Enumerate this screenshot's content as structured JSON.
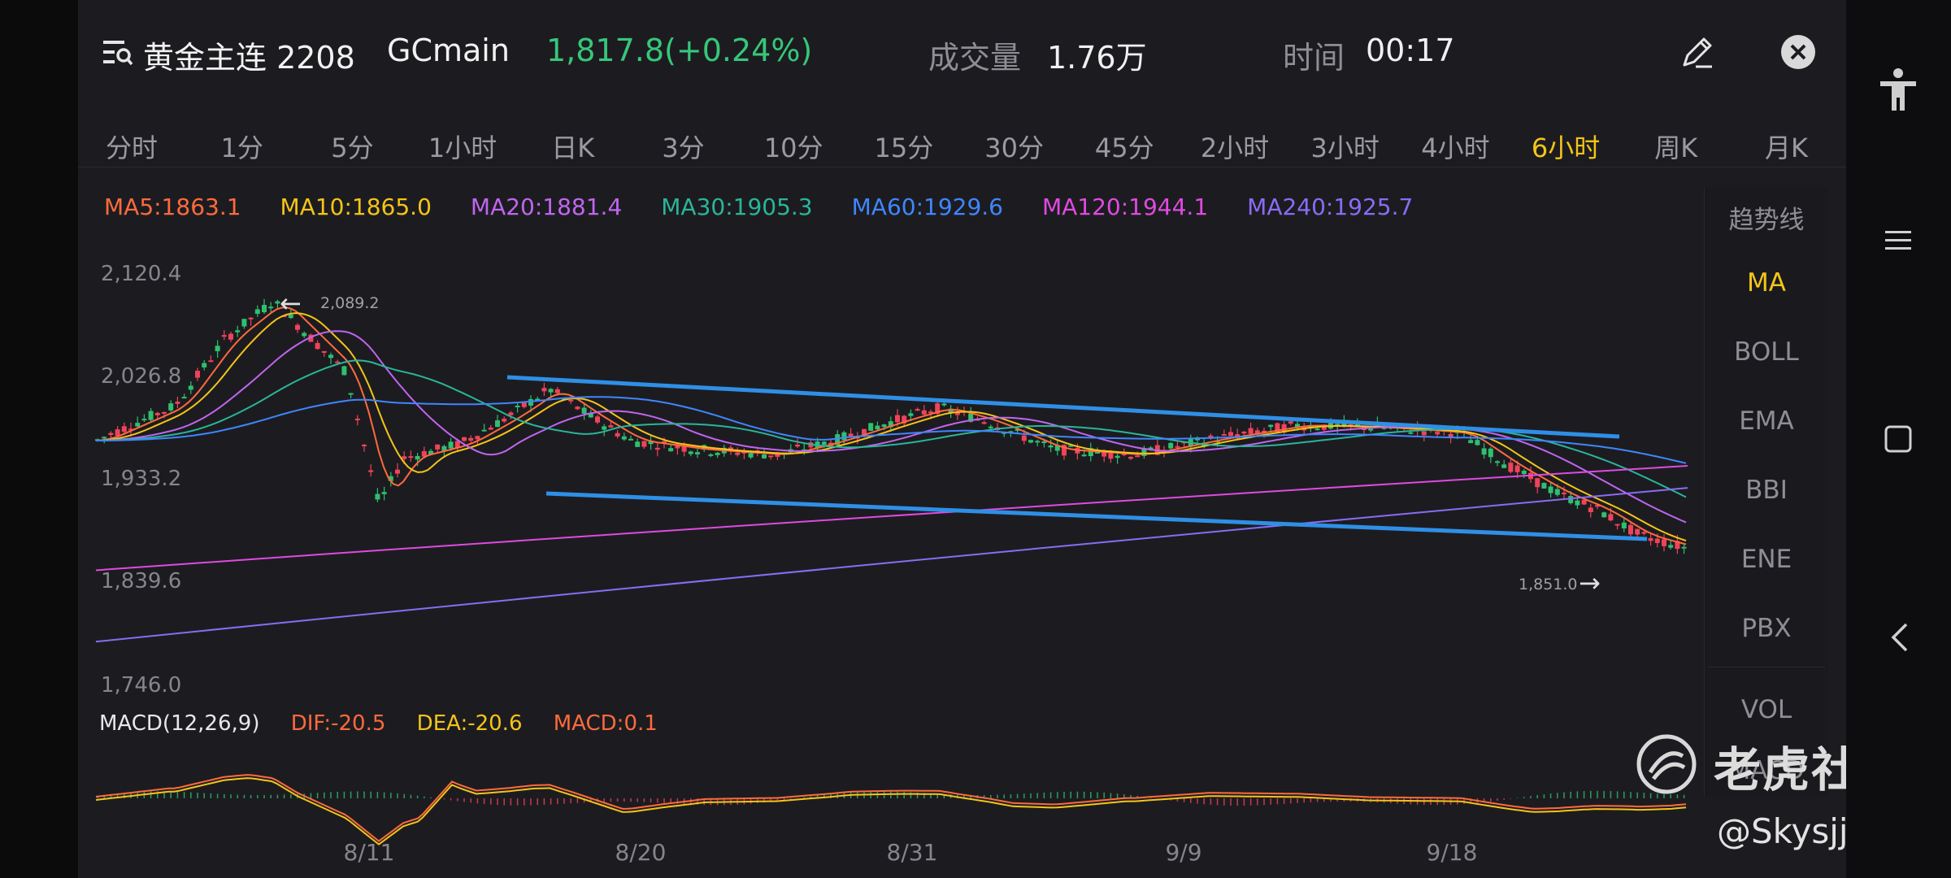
{
  "header": {
    "title": "黄金主连 2208",
    "code": "GCmain",
    "price": "1,817.8(+0.24%)",
    "volume_label": "成交量",
    "volume_value": "1.76万",
    "time_label": "时间",
    "time_value": "00:17",
    "edit_icon": "pencil-icon",
    "close_icon": "close-icon"
  },
  "periods": [
    "分时",
    "1分",
    "5分",
    "1小时",
    "日K",
    "3分",
    "10分",
    "15分",
    "30分",
    "45分",
    "2小时",
    "3小时",
    "4小时",
    "6小时",
    "周K",
    "月K"
  ],
  "active_period": "6小时",
  "ma_legend": [
    {
      "label": "MA5:1863.1",
      "color": "#ff6a3d"
    },
    {
      "label": "MA10:1865.0",
      "color": "#f5c418"
    },
    {
      "label": "MA20:1881.4",
      "color": "#c065f0"
    },
    {
      "label": "MA30:1905.3",
      "color": "#2ab59a"
    },
    {
      "label": "MA60:1929.6",
      "color": "#3f86ff"
    },
    {
      "label": "MA120:1944.1",
      "color": "#e04ae0"
    },
    {
      "label": "MA240:1925.7",
      "color": "#8a6cf5"
    }
  ],
  "price_axis": [
    "2,120.4",
    "2,026.8",
    "1,933.2",
    "1,839.6",
    "1,746.0"
  ],
  "annotations": {
    "high": "2,089.2",
    "low": "1,851.0"
  },
  "macd": {
    "label": "MACD(12,26,9)",
    "dif": "DIF:-20.5",
    "dea": "DEA:-20.6",
    "macd": "MACD:0.1"
  },
  "dates": [
    "8/11",
    "8/20",
    "8/31",
    "9/9",
    "9/18"
  ],
  "side_menu": [
    "趋势线",
    "MA",
    "BOLL",
    "EMA",
    "BBI",
    "ENE",
    "PBX",
    "VOL",
    "MACD"
  ],
  "side_active": "MA",
  "watermark": {
    "brand": "老虎社区",
    "user": "@Skysjjs"
  },
  "colors": {
    "up": "#2fbf6f",
    "down": "#f0435a",
    "trend": "#2f8fe6",
    "accent": "#f5c418"
  },
  "chart_data": {
    "type": "candlestick",
    "yaxis_ticks": [
      2120.4,
      2026.8,
      1933.2,
      1839.6,
      1746.0
    ],
    "ylim": [
      1746.0,
      2120.4
    ],
    "x_tick_labels": [
      "8/11",
      "8/20",
      "8/31",
      "9/9",
      "9/18"
    ],
    "extremes": {
      "high": 2089.2,
      "low": 1851.0
    },
    "moving_averages": {
      "MA5": 1863.1,
      "MA10": 1865.0,
      "MA20": 1881.4,
      "MA30": 1905.3,
      "MA60": 1929.6,
      "MA120": 1944.1,
      "MA240": 1925.7
    },
    "macd": {
      "params": "12,26,9",
      "DIF": -20.5,
      "DEA": -20.6,
      "MACD": 0.1
    },
    "last_price": 1817.8,
    "change_pct": 0.24
  }
}
